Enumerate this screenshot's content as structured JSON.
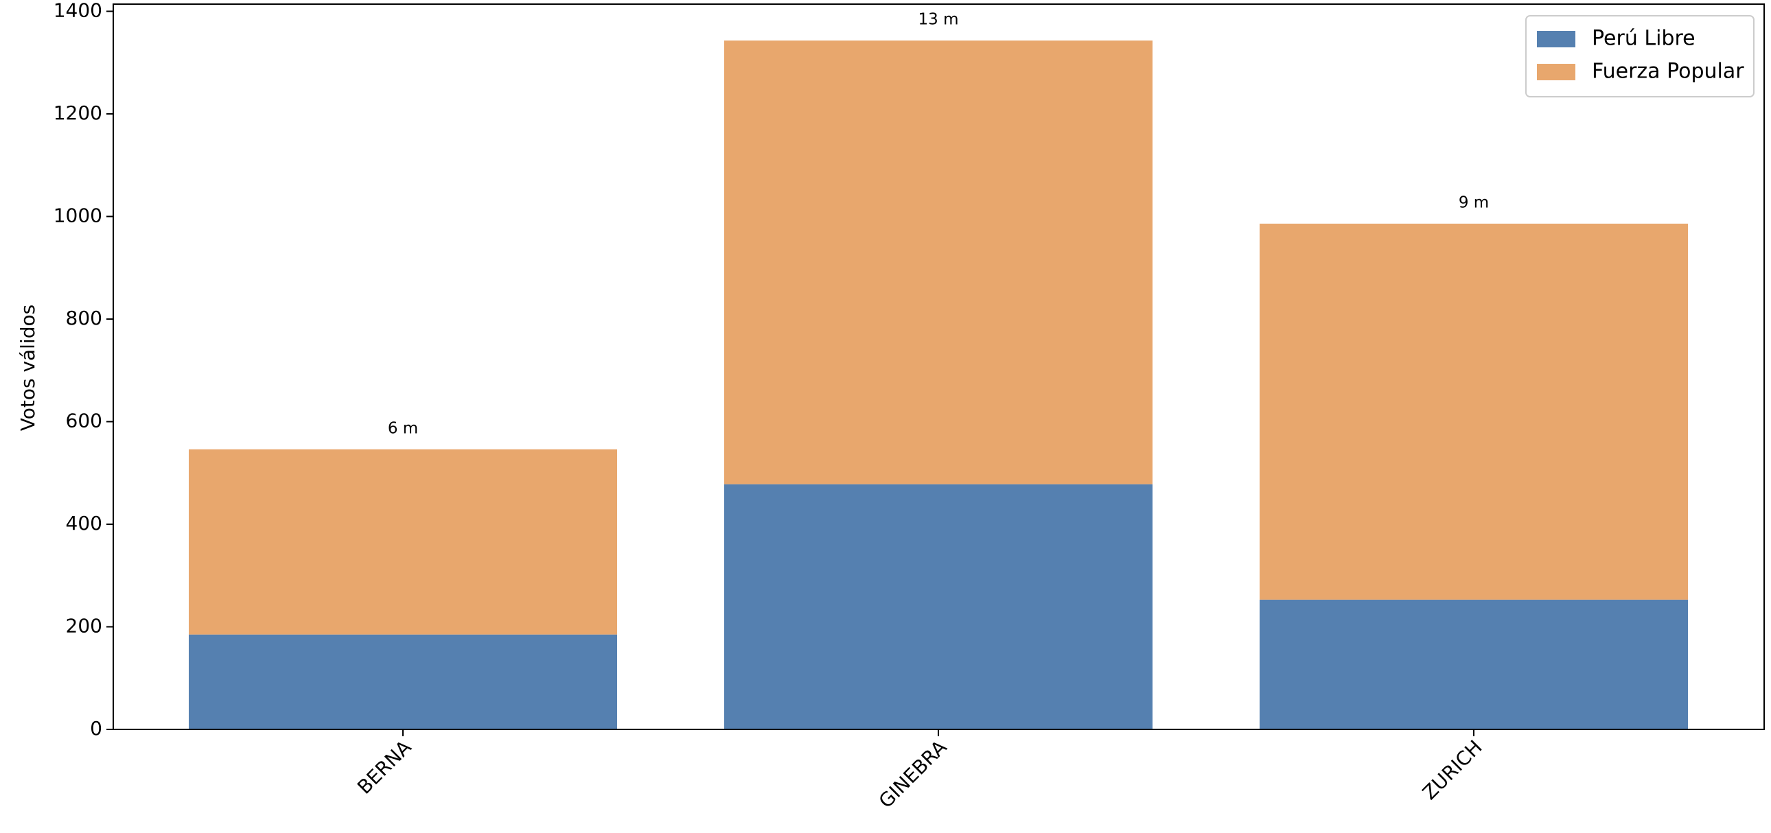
{
  "chart_data": {
    "type": "stacked_bar",
    "y_label": "Votos válidos",
    "categories": [
      "BERNA",
      "GINEBRA",
      "ZURICH"
    ],
    "series": [
      {
        "name": "Perú Libre",
        "color": "#5580b0",
        "values": [
          185,
          478,
          253
        ]
      },
      {
        "name": "Fuerza Popular",
        "color": "#e8a76d",
        "values": [
          361,
          865,
          733
        ]
      }
    ],
    "annotations": [
      "6 m",
      "13 m",
      "9 m"
    ],
    "ylim": [
      0,
      1410
    ],
    "yticks": [
      0,
      200,
      400,
      600,
      800,
      1000,
      1200,
      1400
    ],
    "legend": "upper right"
  }
}
